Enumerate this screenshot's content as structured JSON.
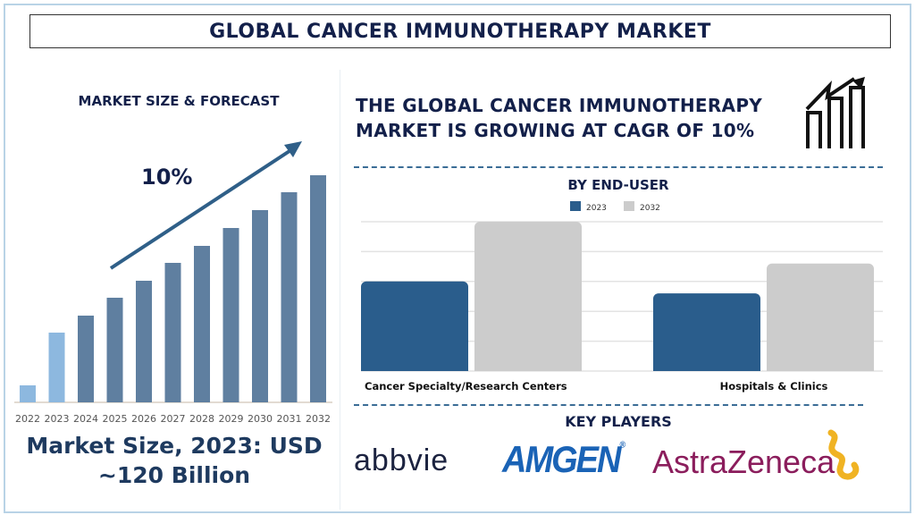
{
  "title": "GLOBAL CANCER IMMUNOTHERAPY MARKET",
  "left_panel": {
    "heading": "MARKET SIZE & FORECAST",
    "cagr_label": "10%",
    "market_size_line1": "Market Size, 2023: USD",
    "market_size_line2": "~120 Billion"
  },
  "headline": {
    "line1": "THE GLOBAL CANCER IMMUNOTHERAPY",
    "line2": "MARKET IS GROWING AT CAGR OF 10%",
    "icon": "growth-chart-icon"
  },
  "key_players": {
    "heading": "KEY PLAYERS",
    "logos": [
      "abbvie",
      "AMGEN",
      "AstraZeneca"
    ]
  },
  "colors": {
    "navy": "#13204a",
    "bar_forecast": "#5f7fa0",
    "bar_actual": "#8db8df",
    "series_2023": "#2a5d8c",
    "series_2032": "#cccccc",
    "amgen": "#1a63b6",
    "astrazeneca": "#8b1d5c",
    "astrazeneca_mark": "#f0b323"
  },
  "chart_data": [
    {
      "type": "bar",
      "title": "MARKET SIZE & FORECAST",
      "categories": [
        "2022",
        "2023",
        "2024",
        "2025",
        "2026",
        "2027",
        "2028",
        "2029",
        "2030",
        "2031",
        "2032"
      ],
      "values": [
        19,
        78,
        97,
        117,
        136,
        156,
        175,
        195,
        215,
        235,
        254
      ],
      "value_note_units": "relative",
      "highlighted": [
        "2022",
        "2023"
      ],
      "annotation": "10%",
      "grid": false
    },
    {
      "type": "bar",
      "title": "BY END-USER",
      "categories": [
        "Cancer Specialty/Research Centers",
        "Hospitals & Clinics"
      ],
      "series": [
        {
          "name": "2023",
          "values": [
            3.0,
            2.6
          ]
        },
        {
          "name": "2032",
          "values": [
            5.0,
            3.6
          ]
        }
      ],
      "ylim": [
        0,
        5
      ],
      "grid": true,
      "legend": "top"
    }
  ]
}
